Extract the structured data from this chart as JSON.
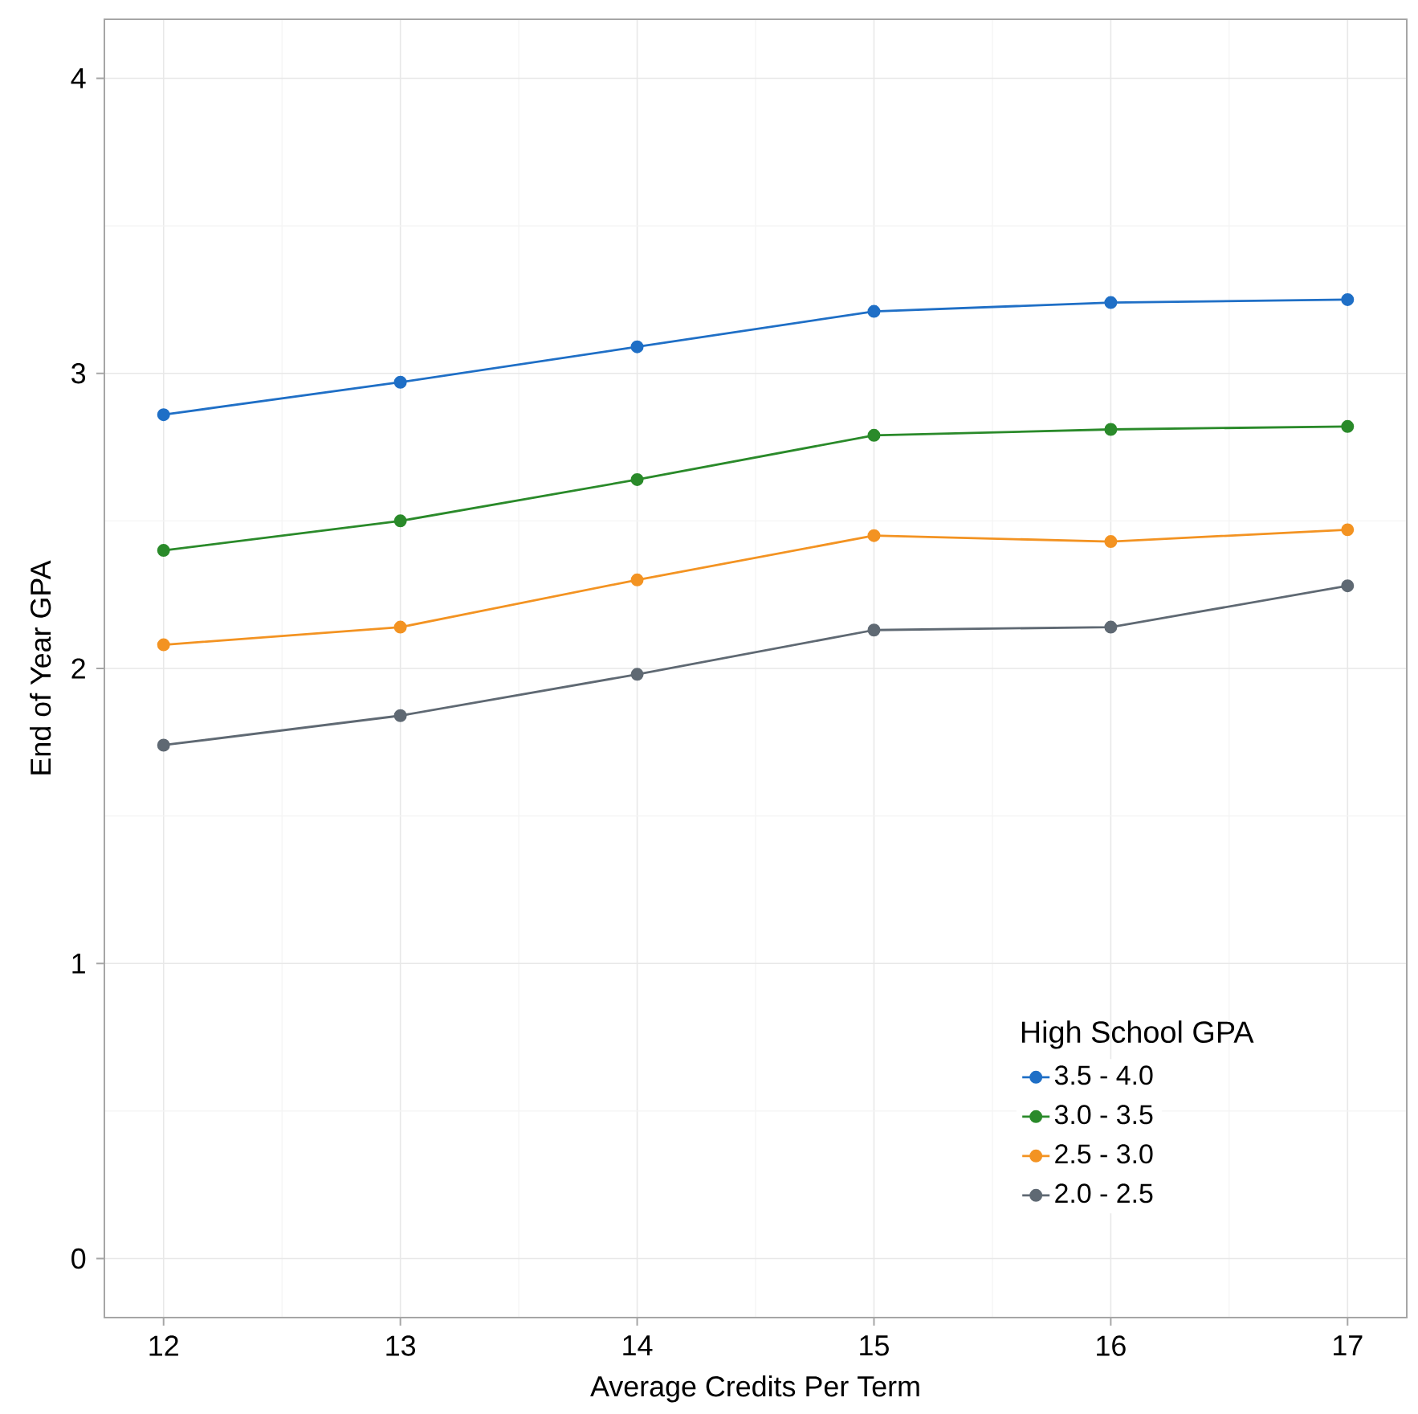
{
  "chart_data": {
    "type": "line",
    "xlabel": "Average Credits Per Term",
    "ylabel": "End of Year GPA",
    "legend_title": "High School GPA",
    "x": [
      12,
      13,
      14,
      15,
      16,
      17
    ],
    "series": [
      {
        "name": "3.5 - 4.0",
        "color": "#1f6fc6",
        "values": [
          2.86,
          2.97,
          3.09,
          3.21,
          3.24,
          3.25
        ]
      },
      {
        "name": "3.0 - 3.5",
        "color": "#2a8a2a",
        "values": [
          2.4,
          2.5,
          2.64,
          2.79,
          2.81,
          2.82
        ]
      },
      {
        "name": "2.5 - 3.0",
        "color": "#f39322",
        "values": [
          2.08,
          2.14,
          2.3,
          2.45,
          2.43,
          2.47
        ]
      },
      {
        "name": "2.0 - 2.5",
        "color": "#5f6973",
        "values": [
          1.74,
          1.84,
          1.98,
          2.13,
          2.14,
          2.28
        ]
      }
    ],
    "xlim": [
      11.75,
      17.25
    ],
    "ylim": [
      -0.2,
      4.2
    ],
    "xticks": [
      12,
      13,
      14,
      15,
      16,
      17
    ],
    "yticks": [
      0,
      1,
      2,
      3,
      4
    ],
    "grid": true,
    "legend": "bottom right",
    "marker": "circle",
    "line_style": "solid"
  }
}
